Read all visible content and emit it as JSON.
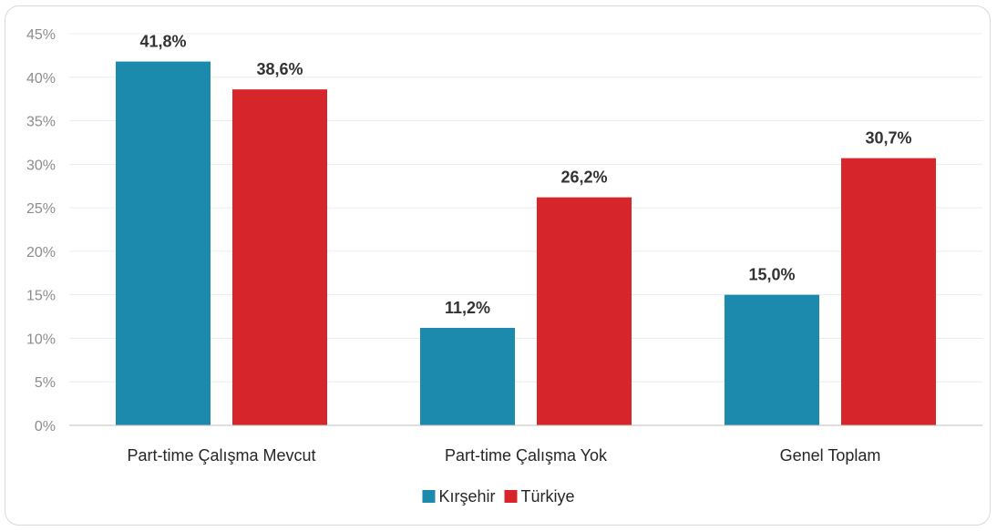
{
  "chart_data": {
    "type": "bar",
    "categories": [
      "Part-time Çalışma Mevcut",
      "Part-time Çalışma Yok",
      "Genel Toplam"
    ],
    "series": [
      {
        "name": "Kırşehir",
        "values": [
          41.8,
          11.2,
          15.0
        ],
        "labels": [
          "41,8%",
          "11,2%",
          "15,0%"
        ],
        "color": "#1b8aad"
      },
      {
        "name": "Türkiye",
        "values": [
          38.6,
          26.2,
          30.7
        ],
        "labels": [
          "38,6%",
          "26,2%",
          "30,7%"
        ],
        "color": "#d7262b"
      }
    ],
    "ylim": [
      0,
      45
    ],
    "y_ticks": [
      0,
      5,
      10,
      15,
      20,
      25,
      30,
      35,
      40,
      45
    ],
    "y_tick_labels": [
      "0%",
      "5%",
      "10%",
      "15%",
      "20%",
      "25%",
      "30%",
      "35%",
      "40%",
      "45%"
    ],
    "grid": true,
    "legend_position": "bottom-center",
    "title": "",
    "xlabel": "",
    "ylabel": ""
  }
}
